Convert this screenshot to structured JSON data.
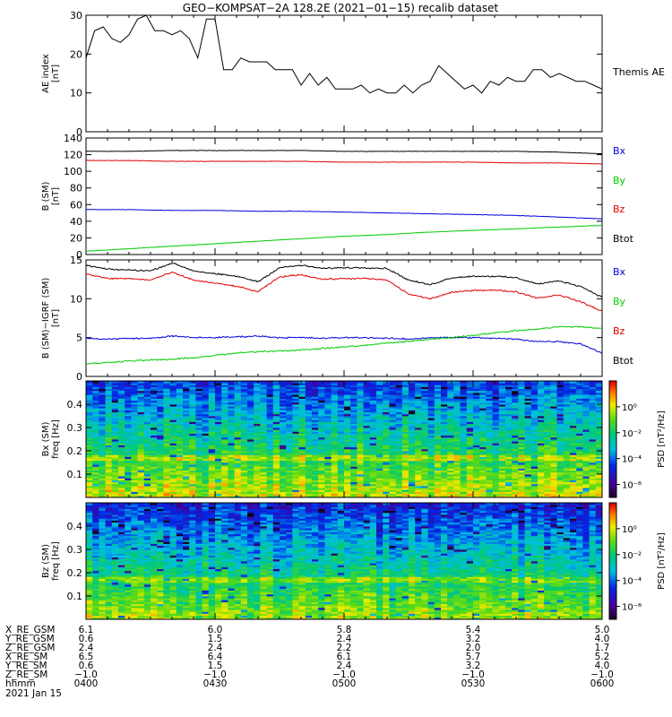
{
  "title": "GEO−KOMPSAT−2A 128.2E (2021−01−15) recalib dataset",
  "colors": {
    "black": "#000000",
    "red": "#e00000",
    "green": "#00cc00",
    "blue": "#0000dd"
  },
  "chart_data": [
    {
      "type": "line",
      "panel": "ae",
      "ylabel": "AE index\n[nT]",
      "ylim": [
        0,
        30
      ],
      "yticks": [
        "0",
        "10",
        "20",
        "30"
      ],
      "legend": [
        {
          "name": "Themis AE",
          "color": "#000000"
        }
      ],
      "x_range_minutes": [
        0,
        120
      ],
      "series": [
        {
          "name": "Themis AE",
          "color": "#000000",
          "x": [
            0,
            2,
            4,
            6,
            8,
            10,
            12,
            14,
            16,
            18,
            20,
            22,
            24,
            26,
            28,
            30,
            32,
            34,
            36,
            38,
            40,
            42,
            44,
            46,
            48,
            50,
            52,
            54,
            56,
            58,
            60,
            62,
            64,
            66,
            68,
            70,
            72,
            74,
            76,
            78,
            80,
            82,
            84,
            86,
            88,
            90,
            92,
            94,
            96,
            98,
            100,
            102,
            104,
            106,
            108,
            110,
            112,
            114,
            116,
            118,
            120
          ],
          "values": [
            19,
            26,
            27,
            24,
            23,
            25,
            29,
            30,
            26,
            26,
            25,
            26,
            24,
            19,
            29,
            29,
            16,
            16,
            19,
            18,
            18,
            18,
            16,
            16,
            16,
            12,
            15,
            12,
            14,
            11,
            11,
            11,
            12,
            10,
            11,
            10,
            10,
            12,
            10,
            12,
            13,
            17,
            15,
            13,
            11,
            12,
            10,
            13,
            12,
            14,
            13,
            13,
            16,
            16,
            14,
            15,
            14,
            13,
            13,
            12,
            11
          ]
        }
      ]
    },
    {
      "type": "line",
      "panel": "b_sm",
      "ylabel": "B (SM)\n[nT]",
      "ylim": [
        0,
        140
      ],
      "yticks": [
        "0",
        "20",
        "40",
        "60",
        "80",
        "100",
        "120",
        "140"
      ],
      "legend": [
        {
          "name": "Bx",
          "color": "#0000dd"
        },
        {
          "name": "By",
          "color": "#00cc00"
        },
        {
          "name": "Bz",
          "color": "#e00000"
        },
        {
          "name": "Btot",
          "color": "#000000"
        }
      ],
      "x": [
        0,
        10,
        20,
        30,
        40,
        50,
        60,
        70,
        80,
        90,
        100,
        110,
        120
      ],
      "series": [
        {
          "name": "Btot",
          "color": "#000000",
          "values": [
            124,
            124,
            125,
            125,
            125,
            125,
            124,
            124,
            124,
            124,
            124,
            123,
            121
          ]
        },
        {
          "name": "Bz",
          "color": "#e00000",
          "values": [
            113,
            113,
            112,
            112,
            112,
            112,
            111,
            111,
            111,
            111,
            110,
            110,
            109
          ]
        },
        {
          "name": "Bx",
          "color": "#0000dd",
          "values": [
            54,
            54,
            53,
            53,
            52,
            52,
            51,
            50,
            49,
            48,
            47,
            45,
            43
          ]
        },
        {
          "name": "By",
          "color": "#00cc00",
          "values": [
            4,
            7,
            10,
            13,
            16,
            19,
            22,
            24,
            27,
            29,
            31,
            33,
            35
          ]
        }
      ]
    },
    {
      "type": "line",
      "panel": "b_minus_igrf",
      "ylabel": "B (SM)−IGRF (SM)\n[nT]",
      "ylim": [
        0,
        15
      ],
      "yticks": [
        "0",
        "5",
        "10",
        "15"
      ],
      "legend": [
        {
          "name": "Bx",
          "color": "#0000dd"
        },
        {
          "name": "By",
          "color": "#00cc00"
        },
        {
          "name": "Bz",
          "color": "#e00000"
        },
        {
          "name": "Btot",
          "color": "#000000"
        }
      ],
      "x": [
        0,
        5,
        10,
        15,
        20,
        25,
        30,
        35,
        40,
        45,
        50,
        55,
        60,
        65,
        70,
        75,
        80,
        85,
        90,
        95,
        100,
        105,
        110,
        115,
        120
      ],
      "series": [
        {
          "name": "Btot",
          "color": "#000000",
          "values": [
            14.3,
            13.8,
            13.7,
            13.6,
            14.6,
            13.6,
            13.2,
            12.9,
            12.2,
            14.0,
            14.3,
            13.9,
            14.0,
            14.0,
            13.9,
            12.4,
            11.8,
            12.7,
            12.9,
            12.9,
            12.7,
            11.9,
            12.3,
            11.6,
            10.2
          ]
        },
        {
          "name": "Bz",
          "color": "#e00000",
          "values": [
            13.2,
            12.6,
            12.6,
            12.4,
            13.4,
            12.4,
            12.0,
            11.6,
            10.9,
            12.8,
            13.1,
            12.5,
            12.6,
            12.6,
            12.4,
            10.6,
            10.0,
            10.8,
            11.1,
            11.1,
            10.9,
            10.1,
            10.5,
            9.6,
            8.4
          ]
        },
        {
          "name": "Bx",
          "color": "#0000dd",
          "values": [
            4.9,
            4.8,
            4.9,
            4.9,
            5.2,
            5.0,
            5.0,
            5.1,
            5.2,
            5.0,
            5.0,
            4.9,
            5.0,
            5.0,
            4.9,
            4.8,
            5.0,
            5.0,
            5.0,
            4.9,
            4.8,
            4.5,
            4.5,
            4.2,
            3.0
          ]
        },
        {
          "name": "By",
          "color": "#00cc00",
          "values": [
            1.6,
            1.8,
            2.0,
            2.1,
            2.2,
            2.4,
            2.7,
            3.0,
            3.2,
            3.3,
            3.4,
            3.6,
            3.8,
            4.0,
            4.3,
            4.5,
            4.8,
            5.0,
            5.3,
            5.6,
            5.9,
            6.1,
            6.4,
            6.4,
            6.2
          ]
        }
      ]
    },
    {
      "type": "heatmap",
      "panel": "bx_psd",
      "ylabel": "Bx (SM)\nfreq [Hz]",
      "ylim": [
        0,
        0.5
      ],
      "yticks": [
        "0.1",
        "0.2",
        "0.3",
        "0.4"
      ],
      "colorbar_label": "PSD [nT²/Hz]",
      "colorbar_ticks": [
        "10⁰",
        "10⁻²",
        "10⁻⁴",
        "10⁻⁶"
      ],
      "colorbar_exponents": [
        0,
        -2,
        -4,
        -6
      ],
      "colorbar_range": [
        -7,
        2
      ]
    },
    {
      "type": "heatmap",
      "panel": "bz_psd",
      "ylabel": "Bz (SM)\nfreq [Hz]",
      "ylim": [
        0,
        0.5
      ],
      "yticks": [
        "0.1",
        "0.2",
        "0.3",
        "0.4"
      ],
      "colorbar_label": "PSD [nT²/Hz]",
      "colorbar_ticks": [
        "10⁰",
        "10⁻²",
        "10⁻⁴",
        "10⁻⁶"
      ],
      "colorbar_exponents": [
        0,
        -2,
        -4,
        -6
      ],
      "colorbar_range": [
        -7,
        2
      ]
    }
  ],
  "ephemeris": {
    "labels": [
      "X_RE_GSM",
      "Y_RE_GSM",
      "Z_RE_GSM",
      "X_RE_SM",
      "Y_RE_SM",
      "Z_RE_SM",
      "hhmm"
    ],
    "columns": [
      [
        "6.1",
        "0.6",
        "2.4",
        "6.5",
        "0.6",
        "−1.0",
        "0400"
      ],
      [
        "6.0",
        "1.5",
        "2.4",
        "6.4",
        "1.5",
        "−1.0",
        "0430"
      ],
      [
        "5.8",
        "2.4",
        "2.2",
        "6.1",
        "2.4",
        "−1.0",
        "0500"
      ],
      [
        "5.4",
        "3.2",
        "2.0",
        "5.7",
        "3.2",
        "−1.0",
        "0530"
      ],
      [
        "5.0",
        "4.0",
        "1.7",
        "5.2",
        "4.0",
        "−1.0",
        "0600"
      ]
    ],
    "date": "2021 Jan 15"
  }
}
